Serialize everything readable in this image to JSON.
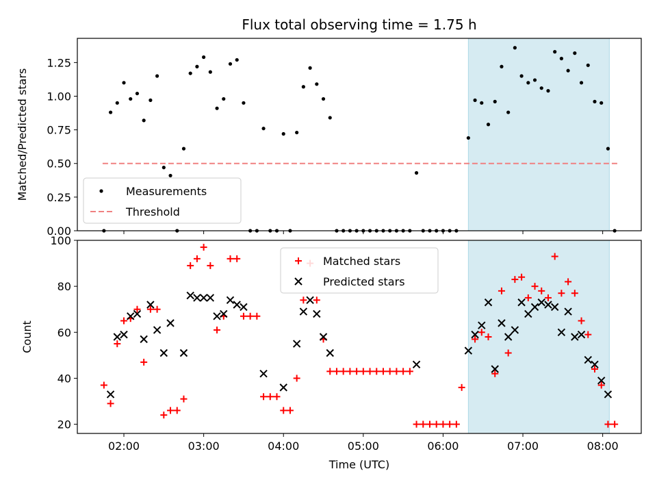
{
  "title": "Flux total observing time = 1.75 h",
  "colors": {
    "measurement": "#000000",
    "threshold": "#f08080",
    "matched": "#ff0000",
    "predicted": "#000000",
    "shade": "#add8e6"
  },
  "chart_data": [
    {
      "type": "scatter",
      "ylabel": "Matched/Predicted stars",
      "xlim": [
        "01:25",
        "08:29"
      ],
      "ylim": [
        0,
        1.43
      ],
      "yticks": [
        0.0,
        0.25,
        0.5,
        0.75,
        1.0,
        1.25
      ],
      "ytick_labels": [
        "0.00",
        "0.25",
        "0.50",
        "0.75",
        "1.00",
        "1.25"
      ],
      "shaded_span": [
        "06:19",
        "08:05"
      ],
      "legend": {
        "placement": "lower-left",
        "entries": [
          "Measurements",
          "Threshold"
        ]
      },
      "threshold": {
        "name": "Threshold",
        "y": 0.5,
        "x": [
          "01:44",
          "08:11"
        ]
      },
      "series": [
        {
          "name": "Measurements",
          "marker": "dot",
          "points": [
            [
              "01:45",
              0.0
            ],
            [
              "01:50",
              0.88
            ],
            [
              "01:55",
              0.95
            ],
            [
              "02:00",
              1.1
            ],
            [
              "02:05",
              0.98
            ],
            [
              "02:10",
              1.02
            ],
            [
              "02:15",
              0.82
            ],
            [
              "02:20",
              0.97
            ],
            [
              "02:25",
              1.15
            ],
            [
              "02:30",
              0.47
            ],
            [
              "02:35",
              0.41
            ],
            [
              "02:40",
              0.0
            ],
            [
              "02:45",
              0.61
            ],
            [
              "02:50",
              1.17
            ],
            [
              "02:55",
              1.22
            ],
            [
              "03:00",
              1.29
            ],
            [
              "03:05",
              1.18
            ],
            [
              "03:10",
              0.91
            ],
            [
              "03:15",
              0.98
            ],
            [
              "03:20",
              1.24
            ],
            [
              "03:25",
              1.27
            ],
            [
              "03:30",
              0.95
            ],
            [
              "03:35",
              0.0
            ],
            [
              "03:40",
              0.0
            ],
            [
              "03:45",
              0.76
            ],
            [
              "03:50",
              0.0
            ],
            [
              "03:55",
              0.0
            ],
            [
              "04:00",
              0.72
            ],
            [
              "04:05",
              0.0
            ],
            [
              "04:10",
              0.73
            ],
            [
              "04:15",
              1.07
            ],
            [
              "04:20",
              1.21
            ],
            [
              "04:25",
              1.09
            ],
            [
              "04:30",
              0.98
            ],
            [
              "04:35",
              0.84
            ],
            [
              "04:40",
              0.0
            ],
            [
              "04:45",
              0.0
            ],
            [
              "04:50",
              0.0
            ],
            [
              "04:55",
              0.0
            ],
            [
              "05:00",
              0.0
            ],
            [
              "05:05",
              0.0
            ],
            [
              "05:10",
              0.0
            ],
            [
              "05:15",
              0.0
            ],
            [
              "05:20",
              0.0
            ],
            [
              "05:25",
              0.0
            ],
            [
              "05:30",
              0.0
            ],
            [
              "05:35",
              0.0
            ],
            [
              "05:40",
              0.43
            ],
            [
              "05:45",
              0.0
            ],
            [
              "05:50",
              0.0
            ],
            [
              "05:55",
              0.0
            ],
            [
              "06:00",
              0.0
            ],
            [
              "06:05",
              0.0
            ],
            [
              "06:10",
              0.0
            ],
            [
              "06:19",
              0.69
            ],
            [
              "06:24",
              0.97
            ],
            [
              "06:29",
              0.95
            ],
            [
              "06:34",
              0.79
            ],
            [
              "06:39",
              0.96
            ],
            [
              "06:44",
              1.22
            ],
            [
              "06:49",
              0.88
            ],
            [
              "06:54",
              1.36
            ],
            [
              "06:59",
              1.15
            ],
            [
              "07:04",
              1.1
            ],
            [
              "07:09",
              1.12
            ],
            [
              "07:14",
              1.06
            ],
            [
              "07:19",
              1.04
            ],
            [
              "07:24",
              1.33
            ],
            [
              "07:29",
              1.28
            ],
            [
              "07:34",
              1.19
            ],
            [
              "07:39",
              1.32
            ],
            [
              "07:44",
              1.1
            ],
            [
              "07:49",
              1.23
            ],
            [
              "07:54",
              0.96
            ],
            [
              "07:59",
              0.95
            ],
            [
              "08:04",
              0.61
            ],
            [
              "08:09",
              0.0
            ]
          ]
        }
      ]
    },
    {
      "type": "scatter",
      "xlabel": "Time (UTC)",
      "ylabel": "Count",
      "xlim": [
        "01:25",
        "08:29"
      ],
      "ylim": [
        16,
        100
      ],
      "yticks": [
        20,
        40,
        60,
        80,
        100
      ],
      "ytick_labels": [
        "20",
        "40",
        "60",
        "80",
        "100"
      ],
      "xticks": [
        "02:00",
        "03:00",
        "04:00",
        "05:00",
        "06:00",
        "07:00",
        "08:00"
      ],
      "xtick_labels": [
        "02:00",
        "03:00",
        "04:00",
        "05:00",
        "06:00",
        "07:00",
        "08:00"
      ],
      "shaded_span": [
        "06:19",
        "08:05"
      ],
      "legend": {
        "placement": "upper-center",
        "entries": [
          "Matched stars",
          "Predicted stars"
        ]
      },
      "series": [
        {
          "name": "Matched stars",
          "marker": "plus",
          "points": [
            [
              "01:45",
              37
            ],
            [
              "01:50",
              29
            ],
            [
              "01:55",
              55
            ],
            [
              "02:00",
              65
            ],
            [
              "02:05",
              66
            ],
            [
              "02:10",
              70
            ],
            [
              "02:15",
              47
            ],
            [
              "02:20",
              70
            ],
            [
              "02:25",
              70
            ],
            [
              "02:30",
              24
            ],
            [
              "02:35",
              26
            ],
            [
              "02:40",
              26
            ],
            [
              "02:45",
              31
            ],
            [
              "02:50",
              89
            ],
            [
              "02:55",
              92
            ],
            [
              "03:00",
              97
            ],
            [
              "03:05",
              89
            ],
            [
              "03:10",
              61
            ],
            [
              "03:15",
              67
            ],
            [
              "03:20",
              92
            ],
            [
              "03:25",
              92
            ],
            [
              "03:30",
              67
            ],
            [
              "03:35",
              67
            ],
            [
              "03:40",
              67
            ],
            [
              "03:45",
              32
            ],
            [
              "03:50",
              32
            ],
            [
              "03:55",
              32
            ],
            [
              "04:00",
              26
            ],
            [
              "04:05",
              26
            ],
            [
              "04:10",
              40
            ],
            [
              "04:15",
              74
            ],
            [
              "04:20",
              90
            ],
            [
              "04:25",
              74
            ],
            [
              "04:30",
              57
            ],
            [
              "04:35",
              43
            ],
            [
              "04:40",
              43
            ],
            [
              "04:45",
              43
            ],
            [
              "04:50",
              43
            ],
            [
              "04:55",
              43
            ],
            [
              "05:00",
              43
            ],
            [
              "05:05",
              43
            ],
            [
              "05:10",
              43
            ],
            [
              "05:15",
              43
            ],
            [
              "05:20",
              43
            ],
            [
              "05:25",
              43
            ],
            [
              "05:30",
              43
            ],
            [
              "05:35",
              43
            ],
            [
              "05:40",
              20
            ],
            [
              "05:45",
              20
            ],
            [
              "05:50",
              20
            ],
            [
              "05:55",
              20
            ],
            [
              "06:00",
              20
            ],
            [
              "06:05",
              20
            ],
            [
              "06:10",
              20
            ],
            [
              "06:14",
              36
            ],
            [
              "06:24",
              57
            ],
            [
              "06:29",
              60
            ],
            [
              "06:34",
              58
            ],
            [
              "06:39",
              42
            ],
            [
              "06:44",
              78
            ],
            [
              "06:49",
              51
            ],
            [
              "06:54",
              83
            ],
            [
              "06:59",
              84
            ],
            [
              "07:04",
              75
            ],
            [
              "07:09",
              80
            ],
            [
              "07:14",
              78
            ],
            [
              "07:19",
              75
            ],
            [
              "07:24",
              93
            ],
            [
              "07:29",
              77
            ],
            [
              "07:34",
              82
            ],
            [
              "07:39",
              77
            ],
            [
              "07:44",
              65
            ],
            [
              "07:49",
              59
            ],
            [
              "07:54",
              44
            ],
            [
              "07:59",
              37
            ],
            [
              "08:04",
              20
            ],
            [
              "08:09",
              20
            ]
          ]
        },
        {
          "name": "Predicted stars",
          "marker": "x",
          "points": [
            [
              "01:50",
              33
            ],
            [
              "01:55",
              58
            ],
            [
              "02:00",
              59
            ],
            [
              "02:05",
              67
            ],
            [
              "02:10",
              68
            ],
            [
              "02:15",
              57
            ],
            [
              "02:20",
              72
            ],
            [
              "02:25",
              61
            ],
            [
              "02:30",
              51
            ],
            [
              "02:35",
              64
            ],
            [
              "02:45",
              51
            ],
            [
              "02:50",
              76
            ],
            [
              "02:55",
              75
            ],
            [
              "03:00",
              75
            ],
            [
              "03:05",
              75
            ],
            [
              "03:10",
              67
            ],
            [
              "03:15",
              68
            ],
            [
              "03:20",
              74
            ],
            [
              "03:25",
              72
            ],
            [
              "03:30",
              71
            ],
            [
              "03:45",
              42
            ],
            [
              "04:00",
              36
            ],
            [
              "04:10",
              55
            ],
            [
              "04:15",
              69
            ],
            [
              "04:20",
              74
            ],
            [
              "04:25",
              68
            ],
            [
              "04:30",
              58
            ],
            [
              "04:35",
              51
            ],
            [
              "05:40",
              46
            ],
            [
              "06:19",
              52
            ],
            [
              "06:24",
              59
            ],
            [
              "06:29",
              63
            ],
            [
              "06:34",
              73
            ],
            [
              "06:39",
              44
            ],
            [
              "06:44",
              64
            ],
            [
              "06:49",
              58
            ],
            [
              "06:54",
              61
            ],
            [
              "06:59",
              73
            ],
            [
              "07:04",
              68
            ],
            [
              "07:09",
              71
            ],
            [
              "07:14",
              73
            ],
            [
              "07:19",
              72
            ],
            [
              "07:24",
              71
            ],
            [
              "07:29",
              60
            ],
            [
              "07:34",
              69
            ],
            [
              "07:39",
              58
            ],
            [
              "07:44",
              59
            ],
            [
              "07:49",
              48
            ],
            [
              "07:54",
              46
            ],
            [
              "07:59",
              39
            ],
            [
              "08:04",
              33
            ]
          ]
        }
      ]
    }
  ]
}
